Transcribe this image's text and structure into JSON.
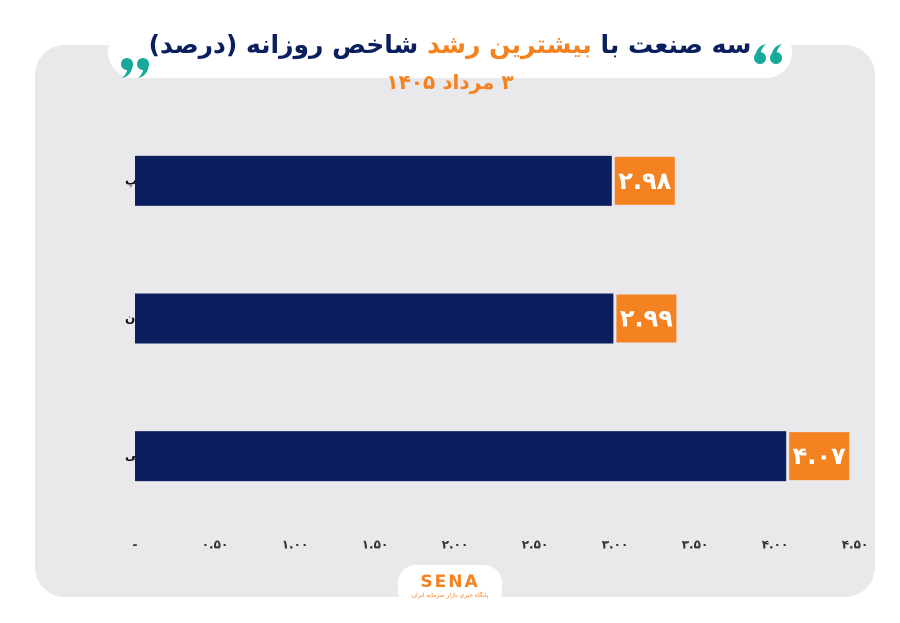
{
  "chart_data": {
    "type": "bar",
    "orientation": "horizontal",
    "title_start": "سه صنعت با",
    "title_highlight": "بیشترین رشد",
    "title_end": "شاخص روزانه (درصد)",
    "subtitle": "۳ مرداد ۱۴۰۵",
    "categories": [
      "انتشار و چاپ",
      "سایر معادن",
      "فرآورده‌های نفتی"
    ],
    "values": [
      2.98,
      2.99,
      4.07
    ],
    "value_labels": [
      "۲.۹۸",
      "۲.۹۹",
      "۴.۰۷"
    ],
    "color": "#0b1f5e",
    "label_color": "#f58220",
    "xlim": [
      0,
      4.5
    ],
    "xticks": [
      {
        "value": 0,
        "label": "-"
      },
      {
        "value": 0.5,
        "label": "۰.۵۰"
      },
      {
        "value": 1,
        "label": "۱.۰۰"
      },
      {
        "value": 1.5,
        "label": "۱.۵۰"
      },
      {
        "value": 2,
        "label": "۲.۰۰"
      },
      {
        "value": 2.5,
        "label": "۲.۵۰"
      },
      {
        "value": 3,
        "label": "۳.۰۰"
      },
      {
        "value": 3.5,
        "label": "۳.۵۰"
      },
      {
        "value": 4,
        "label": "۴.۰۰"
      },
      {
        "value": 4.5,
        "label": "۴.۵۰"
      }
    ]
  },
  "footer": {
    "logo": "SENA",
    "tagline": "پایگاه خبری بازار سرمایه ایران"
  }
}
